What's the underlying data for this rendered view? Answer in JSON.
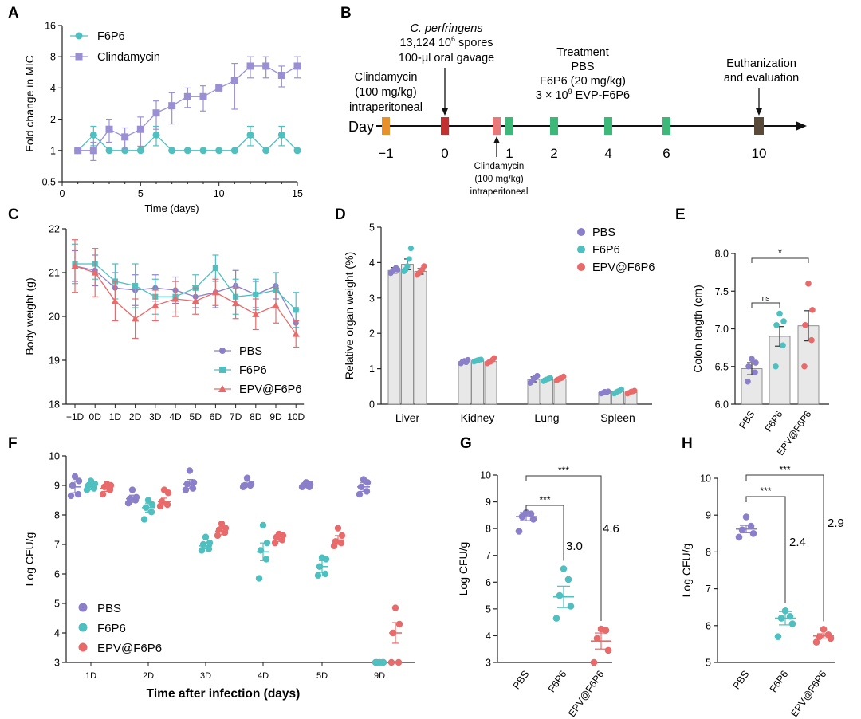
{
  "colors": {
    "pbs": "#8b7fc9",
    "f6p6": "#4fbfbf",
    "epv": "#e86a6a",
    "clinda": "#9b8fd4",
    "bar_fill": "#e8e8e8",
    "bar_stroke": "#777777",
    "axis": "#222222"
  },
  "panel_labels": [
    "A",
    "B",
    "C",
    "D",
    "E",
    "F",
    "G",
    "H"
  ],
  "chart_data": [
    {
      "id": "A",
      "type": "line",
      "title": "",
      "xlabel": "Time (days)",
      "ylabel": "Fold change in MIC",
      "yscale": "log2",
      "xlim": [
        0,
        15
      ],
      "ylim": [
        0.5,
        16
      ],
      "xticks": [
        0,
        5,
        10,
        15
      ],
      "yticks": [
        0.5,
        1,
        2,
        4,
        8,
        16
      ],
      "ytick_labels": [
        "0.5",
        "1",
        "2",
        "4",
        "8",
        "16"
      ],
      "legend": [
        "F6P6",
        "Clindamycin"
      ],
      "series": [
        {
          "name": "F6P6",
          "color": "#4fbfbf",
          "marker": "circle",
          "x": [
            1,
            2,
            3,
            4,
            5,
            6,
            7,
            8,
            9,
            10,
            11,
            12,
            13,
            14,
            15
          ],
          "y": [
            1,
            1.41,
            1,
            1,
            1,
            1.41,
            1,
            1,
            1,
            1,
            1,
            1.41,
            1,
            1.41,
            1
          ],
          "err": [
            0,
            0.3,
            0,
            0,
            0,
            0.3,
            0,
            0,
            0,
            0,
            0,
            0.3,
            0,
            0.3,
            0
          ]
        },
        {
          "name": "Clindamycin",
          "color": "#9b8fd4",
          "marker": "square",
          "x": [
            1,
            2,
            3,
            4,
            5,
            6,
            7,
            8,
            9,
            10,
            11,
            12,
            13,
            14,
            15
          ],
          "y": [
            1,
            1,
            1.6,
            1.35,
            1.6,
            2.3,
            2.7,
            3.3,
            3.3,
            4,
            4.7,
            6.5,
            6.5,
            5.3,
            6.5
          ],
          "err": [
            0,
            0.2,
            0.4,
            0.3,
            0.5,
            0.7,
            0.9,
            0.7,
            0.9,
            0,
            2.2,
            1.5,
            1.5,
            1.2,
            1.5
          ]
        }
      ]
    },
    {
      "id": "C",
      "type": "line",
      "xlabel": "",
      "ylabel": "Body weight (g)",
      "ylim": [
        18,
        22
      ],
      "categories": [
        "−1D",
        "0D",
        "1D",
        "2D",
        "3D",
        "4D",
        "5D",
        "6D",
        "7D",
        "8D",
        "9D",
        "10D"
      ],
      "yticks": [
        18,
        19,
        20,
        21,
        22
      ],
      "legend": [
        "PBS",
        "F6P6",
        "EPV@F6P6"
      ],
      "series": [
        {
          "name": "PBS",
          "color": "#8b7fc9",
          "marker": "circle",
          "values": [
            21.15,
            21.05,
            20.65,
            20.6,
            20.65,
            20.6,
            20.45,
            20.55,
            20.7,
            20.5,
            20.7,
            19.85
          ],
          "err": [
            0.35,
            0.35,
            0.35,
            0.35,
            0.3,
            0.3,
            0.25,
            0.35,
            0.35,
            0.3,
            0.3,
            0.3
          ]
        },
        {
          "name": "F6P6",
          "color": "#4fbfbf",
          "marker": "square",
          "values": [
            21.2,
            21.2,
            20.8,
            20.7,
            20.45,
            20.45,
            20.65,
            21.1,
            20.45,
            20.5,
            20.6,
            20.15
          ],
          "err": [
            0.45,
            0.35,
            0.4,
            0.5,
            0.4,
            0.35,
            0.3,
            0.3,
            0.4,
            0.35,
            0.4,
            0.4
          ]
        },
        {
          "name": "EPV@F6P6",
          "color": "#e86a6a",
          "marker": "triangle",
          "values": [
            21.15,
            21.0,
            20.35,
            19.95,
            20.25,
            20.4,
            20.35,
            20.55,
            20.3,
            20.05,
            20.25,
            19.6
          ],
          "err": [
            0.6,
            0.55,
            0.45,
            0.45,
            0.35,
            0.4,
            0.3,
            0.3,
            0.35,
            0.35,
            0.4,
            0.3
          ]
        }
      ]
    },
    {
      "id": "D",
      "type": "bar",
      "ylabel": "Relative organ weight (%)",
      "ylim": [
        0,
        5
      ],
      "categories": [
        "Liver",
        "Kidney",
        "Lung",
        "Spleen"
      ],
      "yticks": [
        0,
        1,
        2,
        3,
        4,
        5
      ],
      "legend": [
        "PBS",
        "F6P6",
        "EPV@F6P6"
      ],
      "series": [
        {
          "name": "PBS",
          "color": "#8b7fc9",
          "values": [
            3.78,
            1.2,
            0.7,
            0.33
          ],
          "err": [
            0.08,
            0.04,
            0.07,
            0.03
          ],
          "points": [
            [
              3.7,
              3.75,
              3.8,
              3.85,
              3.8
            ],
            [
              1.15,
              1.2,
              1.22,
              1.18,
              1.25
            ],
            [
              0.6,
              0.65,
              0.72,
              0.75,
              0.8
            ],
            [
              0.3,
              0.32,
              0.35,
              0.33,
              0.36
            ]
          ]
        },
        {
          "name": "F6P6",
          "color": "#4fbfbf",
          "values": [
            3.95,
            1.23,
            0.7,
            0.36
          ],
          "err": [
            0.15,
            0.03,
            0.03,
            0.04
          ],
          "points": [
            [
              3.75,
              3.8,
              3.9,
              4.1,
              4.4
            ],
            [
              1.2,
              1.22,
              1.24,
              1.25,
              1.26
            ],
            [
              0.65,
              0.68,
              0.7,
              0.72,
              0.74
            ],
            [
              0.3,
              0.33,
              0.36,
              0.38,
              0.42
            ]
          ]
        },
        {
          "name": "EPV@F6P6",
          "color": "#e86a6a",
          "values": [
            3.75,
            1.2,
            0.71,
            0.34
          ],
          "err": [
            0.08,
            0.04,
            0.03,
            0.03
          ],
          "points": [
            [
              3.65,
              3.7,
              3.75,
              3.8,
              3.9
            ],
            [
              1.15,
              1.18,
              1.2,
              1.25,
              1.3
            ],
            [
              0.67,
              0.7,
              0.72,
              0.74,
              0.78
            ],
            [
              0.3,
              0.32,
              0.35,
              0.36,
              0.38
            ]
          ]
        }
      ]
    },
    {
      "id": "E",
      "type": "bar",
      "ylabel": "Colon length (cm)",
      "ylim": [
        6.0,
        8.0
      ],
      "categories": [
        "PBS",
        "F6P6",
        "EPV@F6P6"
      ],
      "yticks": [
        6.0,
        6.5,
        7.0,
        7.5,
        8.0
      ],
      "ytick_labels": [
        "6.0",
        "6.5",
        "7.0",
        "7.5",
        "8.0"
      ],
      "colors": [
        "#8b7fc9",
        "#4fbfbf",
        "#e86a6a"
      ],
      "values": [
        6.47,
        6.9,
        7.04
      ],
      "err": [
        0.08,
        0.13,
        0.2
      ],
      "points": [
        [
          6.3,
          6.42,
          6.5,
          6.55,
          6.6
        ],
        [
          6.5,
          6.78,
          7.05,
          7.1,
          7.2
        ],
        [
          6.5,
          6.85,
          7.05,
          7.25,
          7.6
        ]
      ],
      "annotations": [
        {
          "from": 0,
          "to": 1,
          "text": "ns"
        },
        {
          "from": 0,
          "to": 2,
          "text": "*"
        }
      ]
    },
    {
      "id": "F",
      "type": "scatter",
      "xlabel": "Time after infection (days)",
      "ylabel": "Log CFU/g",
      "ylim": [
        3,
        10
      ],
      "categories": [
        "1D",
        "2D",
        "3D",
        "4D",
        "5D",
        "9D"
      ],
      "yticks": [
        3,
        4,
        5,
        6,
        7,
        8,
        9,
        10
      ],
      "legend": [
        "PBS",
        "F6P6",
        "EPV@F6P6"
      ],
      "series": [
        {
          "name": "PBS",
          "color": "#8b7fc9",
          "means": [
            8.95,
            8.55,
            9.05,
            9.05,
            9.0,
            8.95
          ],
          "err": [
            0.2,
            0.12,
            0.15,
            0.1,
            0.07,
            0.15
          ],
          "points": [
            [
              8.65,
              8.7,
              9.0,
              9.15,
              9.3
            ],
            [
              8.4,
              8.5,
              8.55,
              8.6,
              8.85
            ],
            [
              8.85,
              8.9,
              9.05,
              9.1,
              9.5
            ],
            [
              8.95,
              9.0,
              9.0,
              9.05,
              9.25
            ],
            [
              8.95,
              8.95,
              9.0,
              9.05,
              9.1
            ],
            [
              8.7,
              8.8,
              8.95,
              9.1,
              9.2
            ]
          ]
        },
        {
          "name": "F6P6",
          "color": "#4fbfbf",
          "means": [
            8.95,
            8.25,
            6.95,
            6.75,
            6.25,
            3.0
          ],
          "err": [
            0.1,
            0.15,
            0.1,
            0.3,
            0.2,
            0
          ],
          "points": [
            [
              8.85,
              8.9,
              9.0,
              9.05,
              9.15
            ],
            [
              7.85,
              8.1,
              8.25,
              8.35,
              8.5
            ],
            [
              6.8,
              6.85,
              7.0,
              7.05,
              7.25
            ],
            [
              5.85,
              6.5,
              6.8,
              7.05,
              7.65
            ],
            [
              5.95,
              6.0,
              6.25,
              6.5,
              6.55
            ],
            [
              3.0,
              3.0,
              3.0,
              3.0,
              3.0
            ]
          ]
        },
        {
          "name": "EPV@F6P6",
          "color": "#e86a6a",
          "means": [
            8.9,
            8.45,
            7.45,
            7.2,
            7.15,
            4.0
          ],
          "err": [
            0.1,
            0.12,
            0.12,
            0.1,
            0.15,
            0.35
          ],
          "points": [
            [
              8.7,
              8.85,
              8.95,
              9.0,
              9.05
            ],
            [
              8.3,
              8.35,
              8.45,
              8.75,
              8.85
            ],
            [
              7.3,
              7.4,
              7.5,
              7.55,
              7.7
            ],
            [
              7.05,
              7.15,
              7.25,
              7.3,
              7.35
            ],
            [
              6.95,
              7.05,
              7.1,
              7.3,
              7.55
            ],
            [
              3.0,
              3.0,
              4.0,
              4.3,
              4.85
            ]
          ]
        }
      ]
    },
    {
      "id": "G",
      "type": "scatter",
      "ylabel": "Log CFU/g",
      "ylim": [
        3,
        10
      ],
      "categories": [
        "PBS",
        "F6P6",
        "EPV@F6P6"
      ],
      "yticks": [
        3,
        4,
        5,
        6,
        7,
        8,
        9,
        10
      ],
      "colors": [
        "#8b7fc9",
        "#4fbfbf",
        "#e86a6a"
      ],
      "means": [
        8.45,
        5.45,
        3.8
      ],
      "err": [
        0.15,
        0.4,
        0.3
      ],
      "points": [
        [
          7.9,
          8.35,
          8.45,
          8.55,
          8.6
        ],
        [
          4.65,
          5.1,
          5.5,
          6.1,
          6.5
        ],
        [
          3.0,
          3.45,
          3.9,
          4.2,
          4.25
        ]
      ],
      "annotations": [
        {
          "from": 0,
          "to": 1,
          "text": "***",
          "value": "3.0"
        },
        {
          "from": 0,
          "to": 2,
          "text": "***",
          "value": "4.6"
        }
      ]
    },
    {
      "id": "H",
      "type": "scatter",
      "ylabel": "Log CFU/g",
      "ylim": [
        5,
        10
      ],
      "categories": [
        "PBS",
        "F6P6",
        "EPV@F6P6"
      ],
      "yticks": [
        5,
        6,
        7,
        8,
        9,
        10
      ],
      "colors": [
        "#8b7fc9",
        "#4fbfbf",
        "#e86a6a"
      ],
      "means": [
        8.62,
        6.2,
        5.72
      ],
      "err": [
        0.1,
        0.18,
        0.06
      ],
      "points": [
        [
          8.4,
          8.5,
          8.6,
          8.7,
          8.95
        ],
        [
          5.7,
          6.05,
          6.2,
          6.25,
          6.4
        ],
        [
          5.55,
          5.65,
          5.7,
          5.75,
          5.9
        ]
      ],
      "annotations": [
        {
          "from": 0,
          "to": 1,
          "text": "***",
          "value": "2.4"
        },
        {
          "from": 0,
          "to": 2,
          "text": "***",
          "value": "2.9"
        }
      ]
    }
  ],
  "timeline": {
    "day_label": "Day",
    "days": [
      {
        "label": "−1",
        "color": "#e8902a"
      },
      {
        "label": "0",
        "color": "#c23030"
      },
      {
        "label": "",
        "color": "#e8787a"
      },
      {
        "label": "1",
        "color": "#3cb878"
      },
      {
        "label": "2",
        "color": "#3cb878"
      },
      {
        "label": "4",
        "color": "#3cb878"
      },
      {
        "label": "6",
        "color": "#3cb878"
      },
      {
        "label": "10",
        "color": "#5a4a3a"
      }
    ],
    "clinda_text": [
      "Clindamycin",
      "(100 mg/kg)",
      "intraperitoneal"
    ],
    "gavage_text": [
      "C. perfringens",
      "13,124 10",
      "6",
      " spores",
      "100-μl oral gavage"
    ],
    "treatment_text": [
      "Treatment",
      "PBS",
      "F6P6 (20 mg/kg)",
      "3 × 10",
      "9",
      " EVP-F6P6"
    ],
    "euth_text": [
      "Euthanization",
      "and evaluation"
    ],
    "clinda2_text": [
      "Clindamycin",
      "(100 mg/kg)",
      "intraperitoneal"
    ]
  }
}
